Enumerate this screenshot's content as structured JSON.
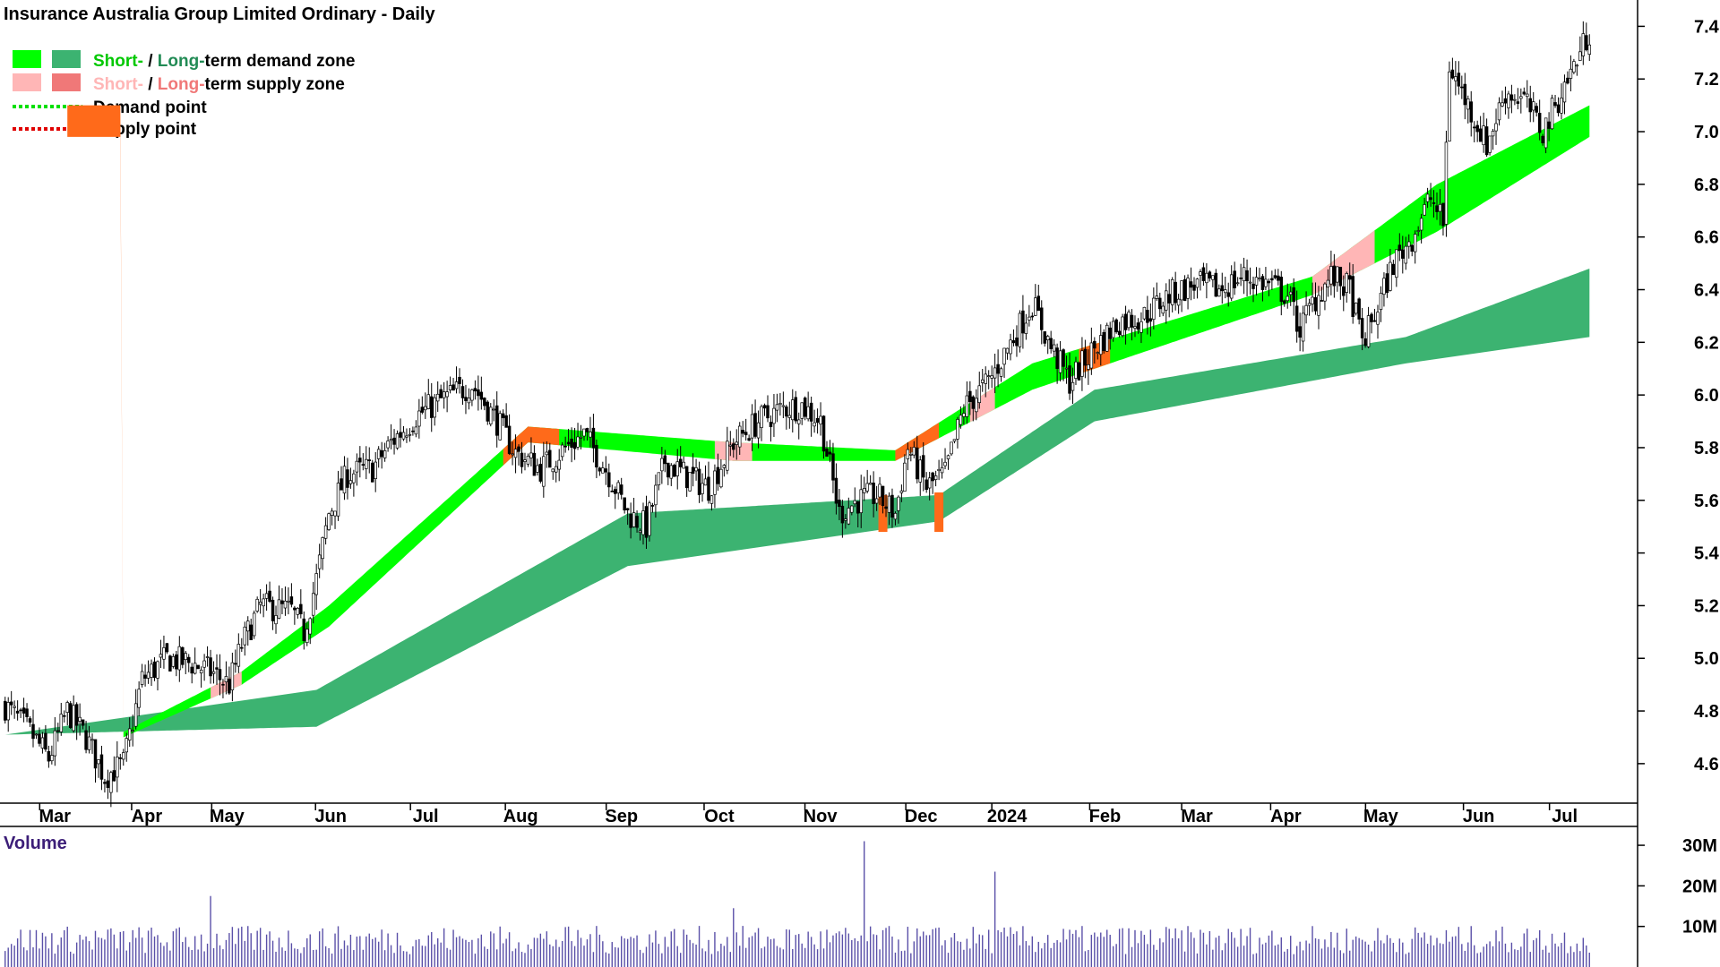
{
  "title": "Insurance Australia Group Limited Ordinary - Daily",
  "legend": {
    "demand_zone": {
      "short": "Short-",
      "sep": " / ",
      "long": "Long-",
      "rest": "term demand zone"
    },
    "supply_zone": {
      "short": "Short-",
      "sep": " / ",
      "long": "Long-",
      "rest": "term supply zone"
    },
    "demand_point": "Demand point",
    "supply_point": "Supply point"
  },
  "colors": {
    "short_demand": "#00ff00",
    "long_demand": "#3cb371",
    "short_supply": "#ffb6b6",
    "long_supply": "#f07878",
    "active_supply": "#ff6a1a",
    "demand_point": "#00e000",
    "supply_point": "#e00000",
    "volume_bar": "#5a50a8",
    "volume_title": "#3c1e78"
  },
  "volume_label": "Volume",
  "chart_data": {
    "type": "candlestick",
    "price_axis": {
      "ticks": [
        "7.4",
        "7.2",
        "7.0",
        "6.8",
        "6.6",
        "6.4",
        "6.2",
        "6.0",
        "5.8",
        "5.6",
        "5.4",
        "5.2",
        "5.0",
        "4.8",
        "4.6"
      ],
      "range": [
        4.45,
        7.5
      ]
    },
    "volume_axis": {
      "ticks": [
        "30M",
        "20M",
        "10M"
      ],
      "range": [
        0,
        32000000
      ]
    },
    "x_labels": [
      "Mar",
      "Apr",
      "May",
      "Jun",
      "Jul",
      "Aug",
      "Sep",
      "Oct",
      "Nov",
      "Dec",
      "2024",
      "Feb",
      "Mar",
      "Apr",
      "May",
      "Jun",
      "Jul"
    ],
    "price_path": [
      [
        0,
        4.82
      ],
      [
        8,
        4.72
      ],
      [
        14,
        4.62
      ],
      [
        20,
        4.8
      ],
      [
        26,
        4.7
      ],
      [
        32,
        4.55
      ],
      [
        38,
        4.6
      ],
      [
        44,
        4.92
      ],
      [
        52,
        5.0
      ],
      [
        60,
        4.98
      ],
      [
        66,
        4.95
      ],
      [
        72,
        4.9
      ],
      [
        76,
        5.05
      ],
      [
        82,
        5.2
      ],
      [
        92,
        5.18
      ],
      [
        96,
        5.1
      ],
      [
        100,
        5.3
      ],
      [
        104,
        5.55
      ],
      [
        110,
        5.7
      ],
      [
        118,
        5.72
      ],
      [
        124,
        5.82
      ],
      [
        132,
        5.92
      ],
      [
        140,
        5.98
      ],
      [
        150,
        6.04
      ],
      [
        158,
        5.9
      ],
      [
        164,
        5.78
      ],
      [
        172,
        5.72
      ],
      [
        180,
        5.8
      ],
      [
        186,
        5.85
      ],
      [
        194,
        5.7
      ],
      [
        200,
        5.55
      ],
      [
        206,
        5.5
      ],
      [
        212,
        5.75
      ],
      [
        218,
        5.7
      ],
      [
        226,
        5.65
      ],
      [
        234,
        5.82
      ],
      [
        242,
        5.9
      ],
      [
        250,
        5.95
      ],
      [
        256,
        5.96
      ],
      [
        262,
        5.9
      ],
      [
        268,
        5.55
      ],
      [
        274,
        5.6
      ],
      [
        280,
        5.62
      ],
      [
        286,
        5.55
      ],
      [
        290,
        5.8
      ],
      [
        296,
        5.65
      ],
      [
        302,
        5.7
      ],
      [
        308,
        5.95
      ],
      [
        316,
        6.05
      ],
      [
        324,
        6.22
      ],
      [
        330,
        6.35
      ],
      [
        336,
        6.18
      ],
      [
        342,
        6.05
      ],
      [
        350,
        6.18
      ],
      [
        358,
        6.28
      ],
      [
        366,
        6.3
      ],
      [
        374,
        6.38
      ],
      [
        382,
        6.42
      ],
      [
        390,
        6.4
      ],
      [
        398,
        6.45
      ],
      [
        406,
        6.42
      ],
      [
        412,
        6.38
      ],
      [
        416,
        6.25
      ],
      [
        420,
        6.35
      ],
      [
        426,
        6.45
      ],
      [
        432,
        6.4
      ],
      [
        436,
        6.2
      ],
      [
        440,
        6.3
      ],
      [
        446,
        6.5
      ],
      [
        452,
        6.6
      ],
      [
        458,
        6.75
      ],
      [
        462,
        6.65
      ],
      [
        464,
        7.25
      ],
      [
        470,
        7.1
      ],
      [
        476,
        6.95
      ],
      [
        482,
        7.15
      ],
      [
        488,
        7.12
      ],
      [
        494,
        7.0
      ],
      [
        500,
        7.15
      ],
      [
        506,
        7.3
      ],
      [
        509,
        7.38
      ]
    ],
    "volume": {
      "typical": 7000000,
      "spikes": [
        {
          "date_index": 92,
          "value": 31000000
        },
        {
          "date_index": 106,
          "value": 23500000
        },
        {
          "date_index": 78,
          "value": 14500000
        },
        {
          "date_index": 22,
          "value": 17500000
        }
      ]
    },
    "zones": {
      "long_demand": [
        [
          0,
          4.71,
          4.71
        ],
        [
          100,
          4.74,
          4.88
        ],
        [
          200,
          5.35,
          5.55
        ],
        [
          300,
          5.52,
          5.62
        ],
        [
          350,
          5.9,
          6.02
        ],
        [
          450,
          6.12,
          6.22
        ],
        [
          509,
          6.22,
          6.48
        ]
      ],
      "short_demand": [
        [
          38,
          4.7,
          4.72
        ],
        [
          76,
          4.9,
          4.95
        ],
        [
          104,
          5.12,
          5.2
        ],
        [
          168,
          5.82,
          5.88
        ],
        [
          234,
          5.75,
          5.82
        ],
        [
          286,
          5.75,
          5.79
        ],
        [
          330,
          6.02,
          6.12
        ],
        [
          420,
          6.38,
          6.45
        ],
        [
          460,
          6.62,
          6.8
        ],
        [
          509,
          6.98,
          7.1
        ]
      ],
      "supply_segments": [
        [
          20,
          38
        ],
        [
          66,
          76
        ],
        [
          160,
          178
        ],
        [
          228,
          240
        ],
        [
          286,
          300
        ],
        [
          310,
          318
        ],
        [
          345,
          355
        ],
        [
          420,
          440
        ]
      ],
      "supply_bands": [
        [
          282,
          5.48,
          5.62
        ],
        [
          300,
          5.48,
          5.63
        ]
      ]
    }
  }
}
